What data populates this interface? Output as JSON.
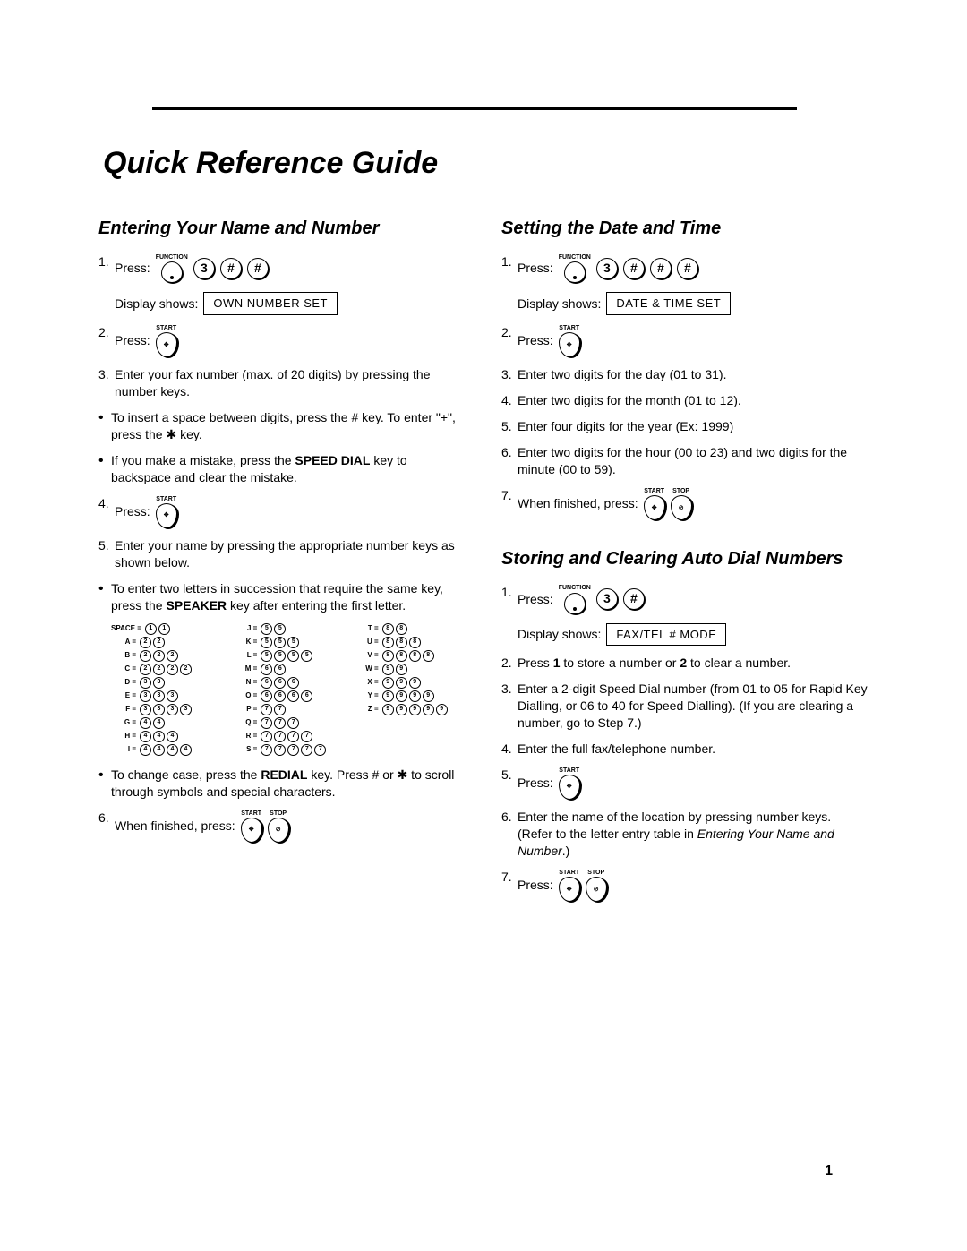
{
  "title": "Quick Reference Guide",
  "page_number": "1",
  "display_label": "Display shows:",
  "press_label": "Press:",
  "function_label": "FUNCTION",
  "start_label": "START",
  "stop_label": "STOP",
  "sec1": {
    "heading": "Entering Your Name and Number",
    "s1": "1.",
    "s1_text": "Press:",
    "s1_keys": [
      "3",
      "#",
      "#"
    ],
    "disp1": "OWN NUMBER SET",
    "s2": "2.",
    "s2_text": "Press:",
    "s3": "3.",
    "s3_text": "Enter your fax number (max. of 20 digits) by pressing the number keys.",
    "b1a": "To insert  a space between digits, press the # key. To enter \"+\", press the ",
    "b1b": " key.",
    "b2a": "If you make a mistake, press the ",
    "b2_bold": "SPEED DIAL",
    "b2b": " key to backspace and clear the mistake.",
    "s4": "4.",
    "s4_text": "Press:",
    "s5": "5.",
    "s5_text": "Enter your name by pressing the appropriate number keys as shown below.",
    "b3a": "To enter two letters in succession that require the same key, press the ",
    "b3_bold": "SPEAKER",
    "b3b": " key after entering the first letter.",
    "b4a": "To change case, press the ",
    "b4_bold": "REDIAL",
    "b4b": " key. Press # or ",
    "b4c": " to scroll through symbols and special characters.",
    "s6": "6.",
    "s6_text": "When finished, press:"
  },
  "letter_table": [
    {
      "label": "SPACE =",
      "seq": [
        "1",
        "1"
      ]
    },
    {
      "label": "J =",
      "seq": [
        "5",
        "5"
      ]
    },
    {
      "label": "T =",
      "seq": [
        "8",
        "8"
      ]
    },
    {
      "label": "A =",
      "seq": [
        "2",
        "2"
      ]
    },
    {
      "label": "K =",
      "seq": [
        "5",
        "5",
        "5"
      ]
    },
    {
      "label": "U =",
      "seq": [
        "8",
        "8",
        "8"
      ]
    },
    {
      "label": "B =",
      "seq": [
        "2",
        "2",
        "2"
      ]
    },
    {
      "label": "L =",
      "seq": [
        "5",
        "5",
        "5",
        "5"
      ]
    },
    {
      "label": "V =",
      "seq": [
        "8",
        "8",
        "8",
        "8"
      ]
    },
    {
      "label": "C =",
      "seq": [
        "2",
        "2",
        "2",
        "2"
      ]
    },
    {
      "label": "M =",
      "seq": [
        "6",
        "6"
      ]
    },
    {
      "label": "W =",
      "seq": [
        "9",
        "9"
      ]
    },
    {
      "label": "D =",
      "seq": [
        "3",
        "3"
      ]
    },
    {
      "label": "N =",
      "seq": [
        "6",
        "6",
        "6"
      ]
    },
    {
      "label": "X =",
      "seq": [
        "9",
        "9",
        "9"
      ]
    },
    {
      "label": "E =",
      "seq": [
        "3",
        "3",
        "3"
      ]
    },
    {
      "label": "O =",
      "seq": [
        "6",
        "6",
        "6",
        "6"
      ]
    },
    {
      "label": "Y =",
      "seq": [
        "9",
        "9",
        "9",
        "9"
      ]
    },
    {
      "label": "F =",
      "seq": [
        "3",
        "3",
        "3",
        "3"
      ]
    },
    {
      "label": "P =",
      "seq": [
        "7",
        "7"
      ]
    },
    {
      "label": "Z =",
      "seq": [
        "9",
        "9",
        "9",
        "9",
        "9"
      ]
    },
    {
      "label": "G =",
      "seq": [
        "4",
        "4"
      ]
    },
    {
      "label": "Q =",
      "seq": [
        "7",
        "7",
        "7"
      ]
    },
    {
      "label": "",
      "seq": []
    },
    {
      "label": "H =",
      "seq": [
        "4",
        "4",
        "4"
      ]
    },
    {
      "label": "R =",
      "seq": [
        "7",
        "7",
        "7",
        "7"
      ]
    },
    {
      "label": "",
      "seq": []
    },
    {
      "label": "I =",
      "seq": [
        "4",
        "4",
        "4",
        "4"
      ]
    },
    {
      "label": "S =",
      "seq": [
        "7",
        "7",
        "7",
        "7",
        "7"
      ]
    },
    {
      "label": "",
      "seq": []
    }
  ],
  "sec2": {
    "heading": "Setting the Date and Time",
    "s1": "1.",
    "s1_text": "Press:",
    "s1_keys": [
      "3",
      "#",
      "#",
      "#"
    ],
    "disp1": "DATE & TIME SET",
    "s2": "2.",
    "s2_text": "Press:",
    "s3": "3.",
    "s3_text": "Enter two digits for the day (01 to 31).",
    "s4": "4.",
    "s4_text": "Enter two digits for the month (01 to 12).",
    "s5": "5.",
    "s5_text": "Enter four digits for the year (Ex: 1999)",
    "s6": "6.",
    "s6_text": "Enter two digits for the hour (00 to 23) and two digits for the minute (00 to 59).",
    "s7": "7.",
    "s7_text": "When finished, press:"
  },
  "sec3": {
    "heading": "Storing and Clearing Auto Dial Numbers",
    "s1": "1.",
    "s1_text": "Press:",
    "s1_keys": [
      "3",
      "#"
    ],
    "disp1": "FAX/TEL # MODE",
    "s2": "2.",
    "s2a": "Press ",
    "s2b1": "1",
    "s2c": " to store a number or ",
    "s2b2": "2",
    "s2d": " to clear a number.",
    "s3": "3.",
    "s3_text": "Enter a 2-digit Speed Dial number (from 01 to 05 for Rapid Key Dialling, or 06 to 40 for Speed Dialling). (If you are clearing a number, go to Step 7.)",
    "s4": "4.",
    "s4_text": "Enter the full fax/telephone number.",
    "s5": "5.",
    "s5_text": "Press:",
    "s6": "6.",
    "s6a": "Enter the name of the location by pressing number keys. (Refer to the letter entry table in ",
    "s6i": "Entering Your Name and Number",
    "s6b": ".)",
    "s7": "7.",
    "s7_text": "Press:"
  }
}
